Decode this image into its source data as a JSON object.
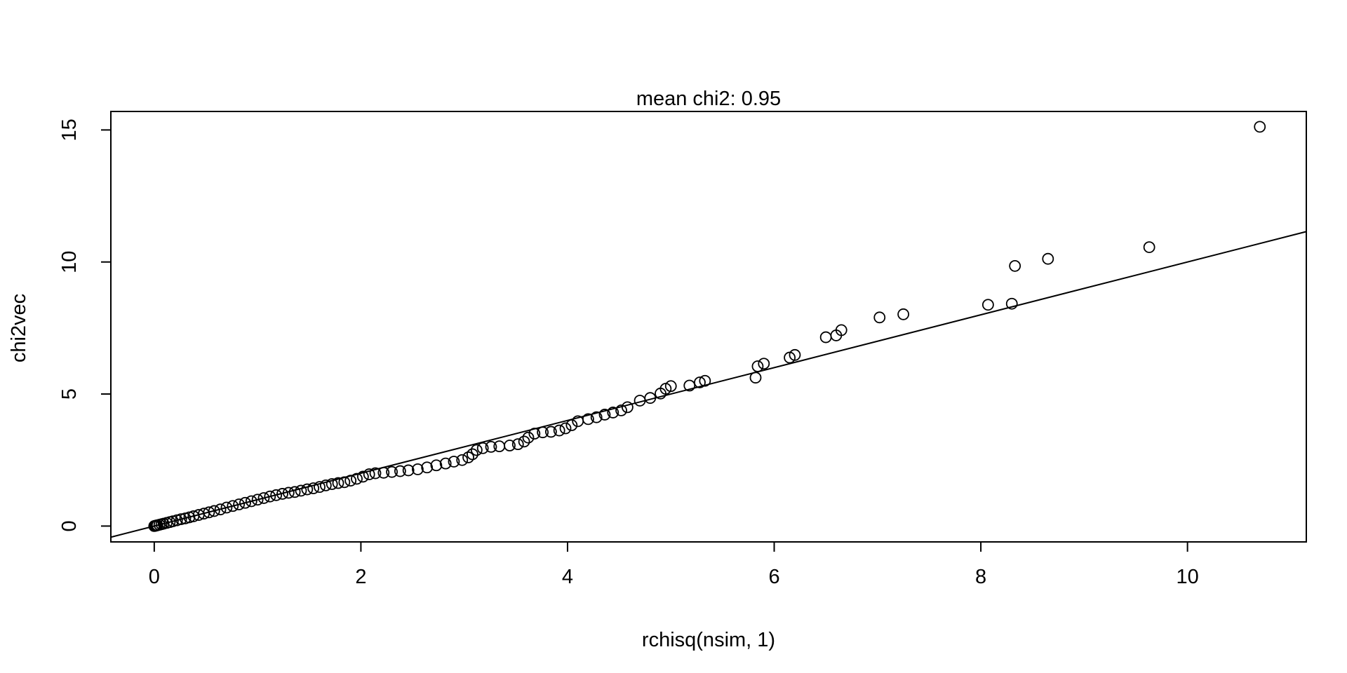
{
  "chart_data": {
    "type": "scatter",
    "title": "mean chi2: 0.95",
    "xlabel": "rchisq(nsim, 1)",
    "ylabel": "chi2vec",
    "xlim": [
      -0.42,
      11.15
    ],
    "ylim": [
      -0.6,
      15.7
    ],
    "xticks": [
      0,
      2,
      4,
      6,
      8,
      10
    ],
    "yticks": [
      0,
      5,
      10,
      15
    ],
    "grid": false,
    "marker": "open-circle",
    "reference_line": {
      "slope": 1,
      "intercept": 0
    },
    "points": [
      [
        0.0,
        0.0
      ],
      [
        0.01,
        0.01
      ],
      [
        0.02,
        0.02
      ],
      [
        0.03,
        0.03
      ],
      [
        0.05,
        0.05
      ],
      [
        0.07,
        0.07
      ],
      [
        0.09,
        0.09
      ],
      [
        0.12,
        0.12
      ],
      [
        0.15,
        0.15
      ],
      [
        0.18,
        0.18
      ],
      [
        0.22,
        0.22
      ],
      [
        0.26,
        0.26
      ],
      [
        0.3,
        0.29
      ],
      [
        0.34,
        0.33
      ],
      [
        0.38,
        0.37
      ],
      [
        0.43,
        0.42
      ],
      [
        0.48,
        0.47
      ],
      [
        0.53,
        0.52
      ],
      [
        0.58,
        0.57
      ],
      [
        0.64,
        0.63
      ],
      [
        0.7,
        0.7
      ],
      [
        0.76,
        0.76
      ],
      [
        0.82,
        0.82
      ],
      [
        0.88,
        0.88
      ],
      [
        0.94,
        0.94
      ],
      [
        1.0,
        1.0
      ],
      [
        1.06,
        1.06
      ],
      [
        1.12,
        1.12
      ],
      [
        1.18,
        1.17
      ],
      [
        1.24,
        1.22
      ],
      [
        1.3,
        1.26
      ],
      [
        1.36,
        1.29
      ],
      [
        1.42,
        1.34
      ],
      [
        1.48,
        1.39
      ],
      [
        1.54,
        1.43
      ],
      [
        1.6,
        1.48
      ],
      [
        1.66,
        1.54
      ],
      [
        1.72,
        1.59
      ],
      [
        1.78,
        1.63
      ],
      [
        1.84,
        1.66
      ],
      [
        1.9,
        1.72
      ],
      [
        1.96,
        1.79
      ],
      [
        2.02,
        1.87
      ],
      [
        2.08,
        1.96
      ],
      [
        2.14,
        2.0
      ],
      [
        2.22,
        2.02
      ],
      [
        2.3,
        2.05
      ],
      [
        2.38,
        2.08
      ],
      [
        2.46,
        2.11
      ],
      [
        2.55,
        2.15
      ],
      [
        2.64,
        2.22
      ],
      [
        2.73,
        2.3
      ],
      [
        2.82,
        2.37
      ],
      [
        2.9,
        2.44
      ],
      [
        2.98,
        2.5
      ],
      [
        3.04,
        2.6
      ],
      [
        3.08,
        2.72
      ],
      [
        3.12,
        2.88
      ],
      [
        3.18,
        2.95
      ],
      [
        3.26,
        3.0
      ],
      [
        3.34,
        3.02
      ],
      [
        3.44,
        3.05
      ],
      [
        3.52,
        3.1
      ],
      [
        3.58,
        3.2
      ],
      [
        3.62,
        3.35
      ],
      [
        3.68,
        3.5
      ],
      [
        3.76,
        3.55
      ],
      [
        3.84,
        3.57
      ],
      [
        3.92,
        3.62
      ],
      [
        3.98,
        3.7
      ],
      [
        4.04,
        3.82
      ],
      [
        4.1,
        3.97
      ],
      [
        4.2,
        4.05
      ],
      [
        4.28,
        4.12
      ],
      [
        4.36,
        4.22
      ],
      [
        4.44,
        4.3
      ],
      [
        4.52,
        4.38
      ],
      [
        4.58,
        4.5
      ],
      [
        4.7,
        4.75
      ],
      [
        4.8,
        4.85
      ],
      [
        4.9,
        5.02
      ],
      [
        4.95,
        5.2
      ],
      [
        5.0,
        5.3
      ],
      [
        5.18,
        5.32
      ],
      [
        5.28,
        5.44
      ],
      [
        5.33,
        5.5
      ],
      [
        5.82,
        5.62
      ],
      [
        5.84,
        6.05
      ],
      [
        5.9,
        6.15
      ],
      [
        6.15,
        6.38
      ],
      [
        6.2,
        6.48
      ],
      [
        6.5,
        7.15
      ],
      [
        6.6,
        7.22
      ],
      [
        6.65,
        7.42
      ],
      [
        7.02,
        7.9
      ],
      [
        7.25,
        8.02
      ],
      [
        8.07,
        8.38
      ],
      [
        8.3,
        8.42
      ],
      [
        8.33,
        9.85
      ],
      [
        8.65,
        10.12
      ],
      [
        9.63,
        10.56
      ],
      [
        10.7,
        15.12
      ]
    ]
  }
}
